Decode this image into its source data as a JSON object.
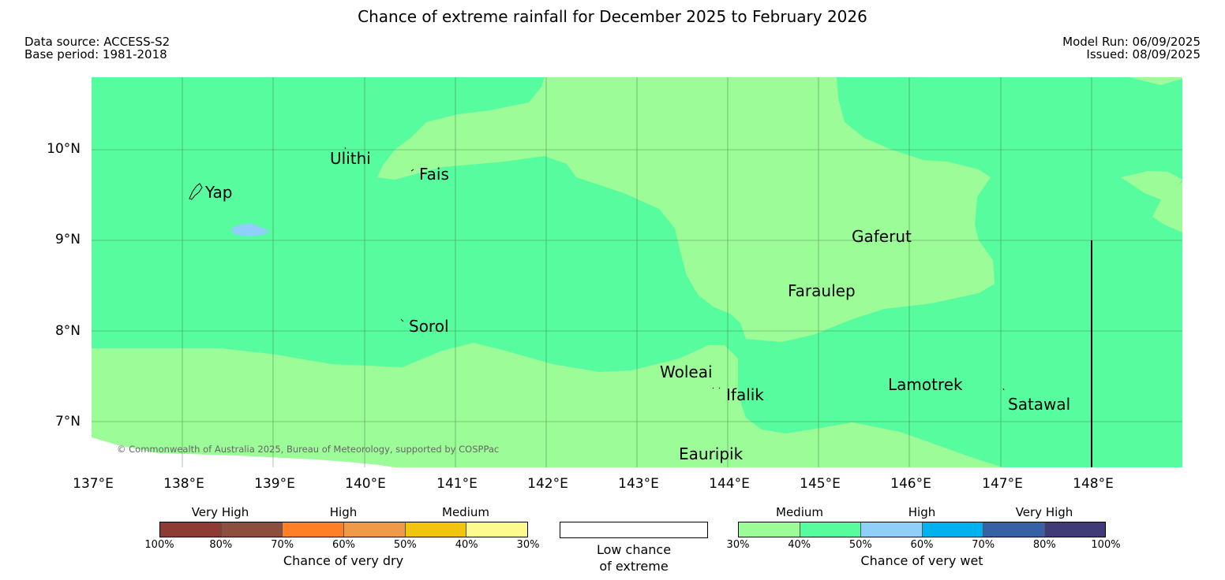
{
  "title": "Chance of extreme rainfall for December 2025 to February 2026",
  "data_source": "Data source: ACCESS-S2",
  "base_period": "Base period: 1981-2018",
  "model_run": "Model Run: 06/09/2025",
  "issued": "Issued: 08/09/2025",
  "map": {
    "lat_labels": [
      "10°N",
      "9°N",
      "8°N",
      "7°N"
    ],
    "lon_labels": [
      "137°E",
      "138°E",
      "139°E",
      "140°E",
      "141°E",
      "142°E",
      "143°E",
      "144°E",
      "145°E",
      "146°E",
      "147°E",
      "148°E"
    ],
    "places": {
      "ulithi": "Ulithi",
      "fais": "Fais",
      "yap": "Yap",
      "gaferut": "Gaferut",
      "faraulep": "Faraulep",
      "sorol": "Sorol",
      "woleai": "Woleai",
      "ifalik": "Ifalik",
      "lamotrek": "Lamotrek",
      "satawal": "Satawal",
      "eauripik": "Eauripik"
    },
    "copyright": "© Commonwealth of Australia 2025, Bureau of Meteorology, supported by COSPPac",
    "colors": {
      "medium_wet": "#9cfc98",
      "high_wet_40_50": "#57fc9f",
      "high_wet_50_60": "#8fcff9",
      "grid": "#3a6b3a"
    }
  },
  "legend": {
    "dry": {
      "categories": [
        "Very High",
        "High",
        "Medium"
      ],
      "ticks": [
        "100%",
        "80%",
        "70%",
        "60%",
        "50%",
        "40%",
        "30%"
      ],
      "colors": [
        "#8e3a35",
        "#8c4f3e",
        "#fe7f26",
        "#ee9a48",
        "#f1c40d",
        "#fefb8e"
      ],
      "label": "Chance of very dry"
    },
    "neutral": {
      "label_line1": "Low chance",
      "label_line2": "of extreme",
      "color": "#ffffff"
    },
    "wet": {
      "categories": [
        "Medium",
        "High",
        "Very High"
      ],
      "ticks": [
        "30%",
        "40%",
        "50%",
        "60%",
        "70%",
        "80%",
        "100%"
      ],
      "colors": [
        "#9cfc98",
        "#57fc9f",
        "#8fcff9",
        "#00b1ef",
        "#3761a5",
        "#3f3b77"
      ],
      "label": "Chance of very wet"
    }
  }
}
